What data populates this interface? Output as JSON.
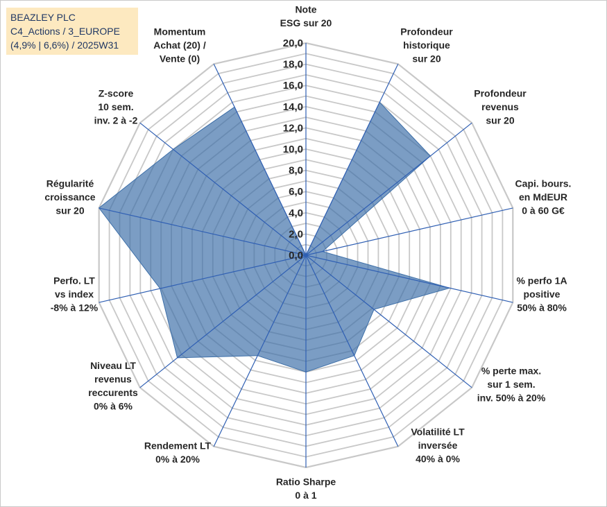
{
  "title_box": {
    "line1": "BEAZLEY PLC",
    "line2": "C4_Actions / 3_EUROPE",
    "line3": "(4,9% | 6,6%) / 2025W31"
  },
  "colors": {
    "fill": "#3d6fa8",
    "fill_opacity": 0.68,
    "spoke": "#2f5fb3",
    "ring": "#c8c8c8",
    "text": "#262626",
    "title_bg": "#fde9c0",
    "title_text": "#1f3763"
  },
  "chart_data": {
    "type": "radar",
    "rlim": [
      0,
      20
    ],
    "grid": true,
    "legend": "none",
    "tick_labels": [
      "0,0",
      "2,0",
      "4,0",
      "6,0",
      "8,0",
      "10,0",
      "12,0",
      "14,0",
      "16,0",
      "18,0",
      "20,0"
    ],
    "axes": [
      {
        "label": [
          "Note",
          "ESG sur 20"
        ],
        "value": 0
      },
      {
        "label": [
          "Profondeur",
          "historique",
          "sur 20"
        ],
        "value": 16
      },
      {
        "label": [
          "Profondeur",
          "revenus",
          "sur 20"
        ],
        "value": 15
      },
      {
        "label": [
          "Capi. bours.",
          "en MdEUR",
          "0 à 60 G€"
        ],
        "value": 1.6
      },
      {
        "label": [
          "% perfo 1A",
          "positive",
          "50% à 80%"
        ],
        "value": 13.9
      },
      {
        "label": [
          "% perte max.",
          "sur 1 sem.",
          "inv. 50% à 20%"
        ],
        "value": 8.2
      },
      {
        "label": [
          "Volatilité LT",
          "inversée",
          "40% à 0%"
        ],
        "value": 10.5
      },
      {
        "label": [
          "Ratio Sharpe",
          "0 à 1"
        ],
        "value": 11
      },
      {
        "label": [
          "Rendement LT",
          "0% à 20%"
        ],
        "value": 10.5
      },
      {
        "label": [
          "Niveau LT",
          "revenus",
          "reccurents",
          "0% à 6%"
        ],
        "value": 15.5
      },
      {
        "label": [
          "Perfo. LT",
          "vs index",
          "-8% à 12%"
        ],
        "value": 14.1
      },
      {
        "label": [
          "Régularité",
          "croissance",
          "sur 20"
        ],
        "value": 20
      },
      {
        "label": [
          "Z-score",
          "10 sem.",
          "inv. 2 à -2"
        ],
        "value": 16
      },
      {
        "label": [
          "Momentum",
          "Achat (20) /",
          "Vente (0)"
        ],
        "value": 15.5
      }
    ]
  }
}
